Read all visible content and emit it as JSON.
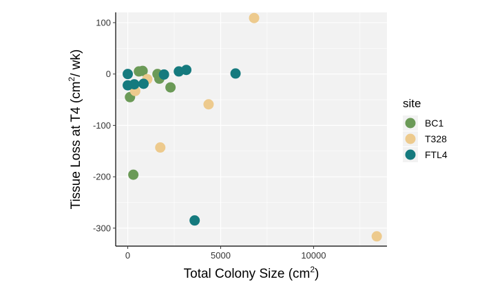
{
  "chart_data": {
    "type": "scatter",
    "title": "",
    "xlabel": "Total Colony Size (cm",
    "xlabel_sup": "2",
    "xlabel_end": ")",
    "ylabel": "Tissue Loss at T4 (cm",
    "ylabel_sup": "2",
    "ylabel_end": "/ wk)",
    "xlim": [
      -650,
      13950
    ],
    "ylim": [
      -335,
      120
    ],
    "xticks": [
      0,
      5000,
      10000
    ],
    "xtick_labels": [
      "0",
      "5000",
      "10000"
    ],
    "yticks": [
      100,
      0,
      -100,
      -200,
      -300
    ],
    "ytick_labels": [
      "100",
      "0",
      "-100",
      "-200",
      "-300"
    ],
    "grid": true,
    "legend": {
      "title": "site",
      "position": "right"
    },
    "colors": {
      "panel": "#f2f2f2",
      "grid": "#ffffff",
      "axis": "#000000"
    },
    "series": [
      {
        "name": "BC1",
        "color": "#6b9a57",
        "points": [
          {
            "x": 120,
            "y": -45
          },
          {
            "x": 300,
            "y": -196
          },
          {
            "x": 600,
            "y": 5
          },
          {
            "x": 800,
            "y": 6
          },
          {
            "x": 1600,
            "y": 0
          },
          {
            "x": 1700,
            "y": -9
          },
          {
            "x": 2300,
            "y": -26
          }
        ]
      },
      {
        "name": "T328",
        "color": "#edca8d",
        "points": [
          {
            "x": 400,
            "y": -33
          },
          {
            "x": 1050,
            "y": -10
          },
          {
            "x": 1750,
            "y": -143
          },
          {
            "x": 4350,
            "y": -59
          },
          {
            "x": 6800,
            "y": 109
          },
          {
            "x": 13400,
            "y": -316
          }
        ]
      },
      {
        "name": "FTL4",
        "color": "#157a7e",
        "points": [
          {
            "x": 0,
            "y": 0
          },
          {
            "x": 0,
            "y": -22
          },
          {
            "x": 350,
            "y": -20
          },
          {
            "x": 850,
            "y": -19
          },
          {
            "x": 1950,
            "y": -1
          },
          {
            "x": 2750,
            "y": 5
          },
          {
            "x": 3150,
            "y": 8
          },
          {
            "x": 3600,
            "y": -285
          },
          {
            "x": 5800,
            "y": 1
          }
        ]
      }
    ]
  }
}
